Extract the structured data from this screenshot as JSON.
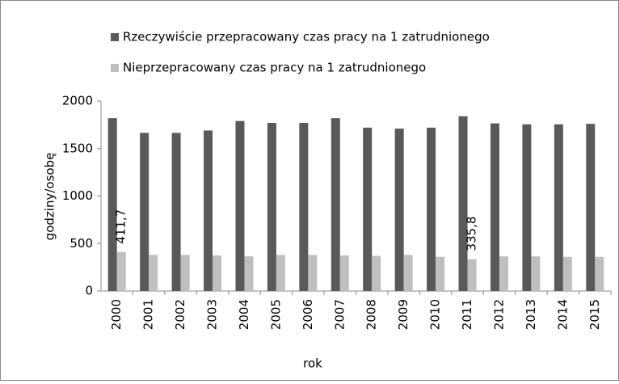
{
  "chart_data": {
    "type": "bar",
    "categories": [
      "2000",
      "2001",
      "2002",
      "2003",
      "2004",
      "2005",
      "2006",
      "2007",
      "2008",
      "2009",
      "2010",
      "2011",
      "2012",
      "2013",
      "2014",
      "2015"
    ],
    "series": [
      {
        "name": "Rzeczywiście przepracowany czas pracy na 1 zatrudnionego",
        "color": "#595959",
        "values": [
          1820,
          1665,
          1665,
          1690,
          1790,
          1770,
          1770,
          1820,
          1720,
          1710,
          1720,
          1840,
          1765,
          1755,
          1755,
          1760
        ]
      },
      {
        "name": "Nieprzepracowany czas pracy na 1 zatrudnionego",
        "color": "#bfbfbf",
        "values": [
          411.7,
          380,
          380,
          375,
          365,
          380,
          380,
          375,
          370,
          380,
          360,
          335.8,
          365,
          365,
          360,
          360
        ],
        "value_labels": [
          "411,7",
          null,
          null,
          null,
          null,
          null,
          null,
          null,
          null,
          null,
          null,
          "335,8",
          null,
          null,
          null,
          null
        ]
      }
    ],
    "xlabel": "rok",
    "ylabel": "godziny/osobę",
    "ylim": [
      0,
      2000
    ],
    "yticks": [
      0,
      500,
      1000,
      1500,
      2000
    ],
    "legend": "top"
  }
}
